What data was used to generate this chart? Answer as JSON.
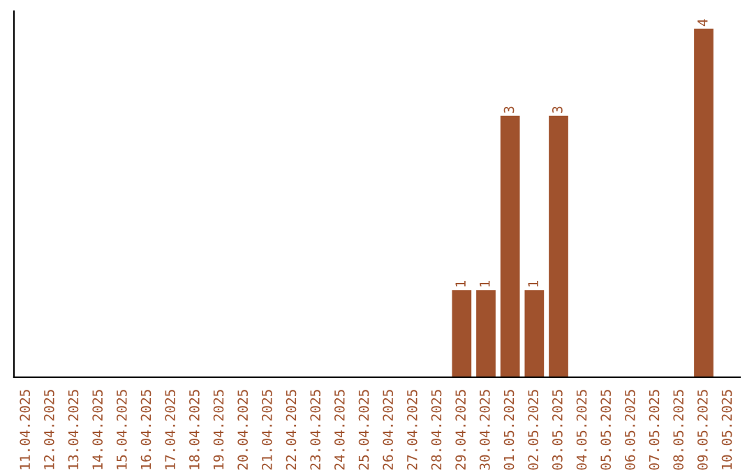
{
  "chart_data": {
    "type": "bar",
    "categories": [
      "11.04.2025",
      "12.04.2025",
      "13.04.2025",
      "14.04.2025",
      "15.04.2025",
      "16.04.2025",
      "17.04.2025",
      "18.04.2025",
      "19.04.2025",
      "20.04.2025",
      "21.04.2025",
      "22.04.2025",
      "23.04.2025",
      "24.04.2025",
      "25.04.2025",
      "26.04.2025",
      "27.04.2025",
      "28.04.2025",
      "29.04.2025",
      "30.04.2025",
      "01.05.2025",
      "02.05.2025",
      "03.05.2025",
      "04.05.2025",
      "05.05.2025",
      "06.05.2025",
      "07.05.2025",
      "08.05.2025",
      "09.05.2025",
      "10.05.2025"
    ],
    "values": [
      null,
      null,
      null,
      null,
      null,
      null,
      null,
      null,
      null,
      null,
      null,
      null,
      null,
      null,
      null,
      null,
      null,
      null,
      1,
      1,
      3,
      1,
      3,
      null,
      null,
      null,
      null,
      null,
      4,
      null
    ],
    "value_labels": [
      null,
      null,
      null,
      null,
      null,
      null,
      null,
      null,
      null,
      null,
      null,
      null,
      null,
      null,
      null,
      null,
      null,
      null,
      "1",
      "1",
      "3",
      "1",
      "3",
      null,
      null,
      null,
      null,
      null,
      "4",
      null
    ],
    "color": "#a0522d",
    "grid": false,
    "legend": false
  }
}
